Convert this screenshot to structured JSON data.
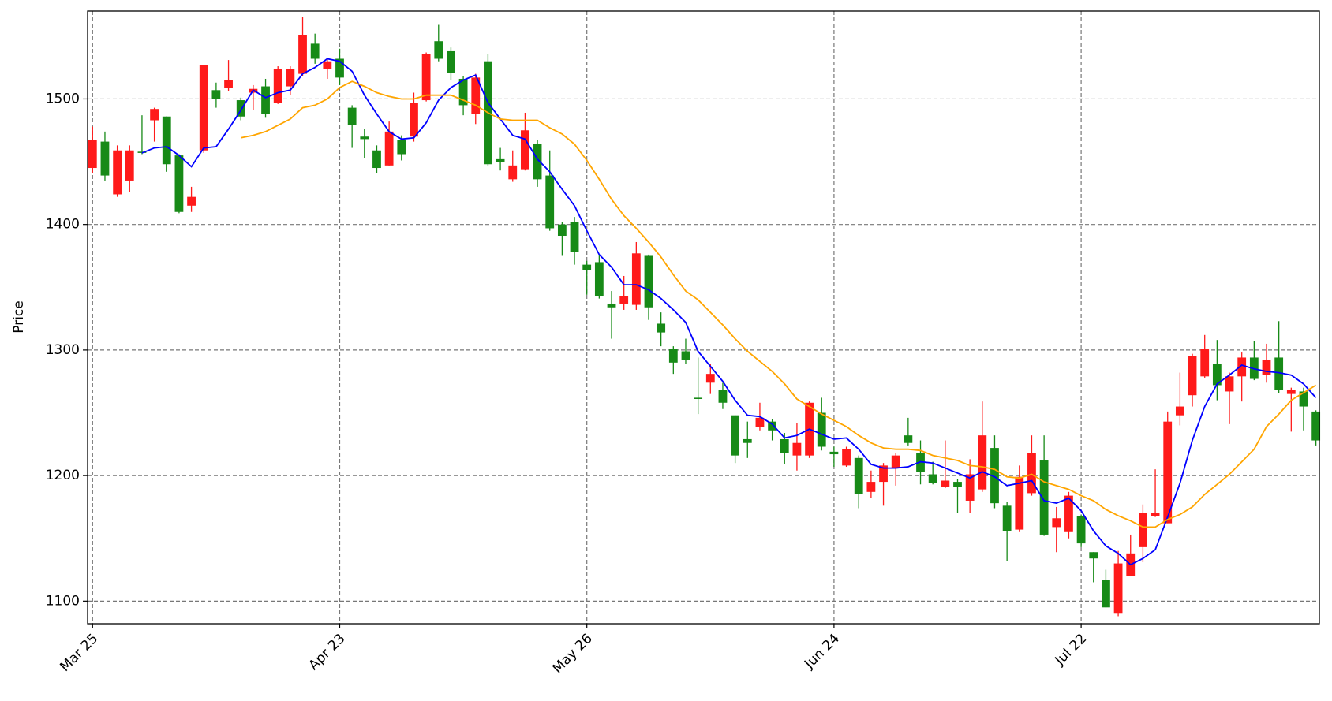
{
  "chart_data": {
    "type": "candlestick",
    "ylabel": "Price",
    "categories": [
      "Mar 25",
      null,
      null,
      null,
      null,
      null,
      null,
      null,
      null,
      null,
      null,
      null,
      null,
      null,
      null,
      null,
      null,
      null,
      null,
      null,
      "Apr 23",
      null,
      null,
      null,
      null,
      null,
      null,
      null,
      null,
      null,
      null,
      null,
      null,
      null,
      null,
      null,
      null,
      null,
      null,
      null,
      "May 26",
      null,
      null,
      null,
      null,
      null,
      null,
      null,
      null,
      null,
      null,
      null,
      null,
      null,
      null,
      null,
      null,
      null,
      null,
      null,
      "Jun 24",
      null,
      null,
      null,
      null,
      null,
      null,
      null,
      null,
      null,
      null,
      null,
      null,
      null,
      null,
      null,
      null,
      null,
      null,
      null,
      "Jul 22",
      null,
      null,
      null,
      null,
      null,
      null,
      null,
      null,
      null,
      null,
      null,
      null,
      null,
      null,
      null,
      null,
      null,
      null,
      null
    ],
    "open": [
      1445,
      1466,
      1424,
      1435,
      1458,
      1483,
      1486,
      1455,
      1415,
      1459,
      1507,
      1509,
      1499,
      1505,
      1510,
      1497,
      1510,
      1520,
      1544,
      1524,
      1532,
      1493,
      1470,
      1459,
      1447,
      1467,
      1470,
      1499,
      1546,
      1538,
      1516,
      1488,
      1530,
      1452,
      1436,
      1444,
      1464,
      1439,
      1400,
      1402,
      1368,
      1370,
      1337,
      1337,
      1336,
      1375,
      1321,
      1301,
      1299,
      1262,
      1274,
      1268,
      1248,
      1229,
      1239,
      1243,
      1229,
      1216,
      1216,
      1250,
      1219,
      1208,
      1214,
      1187,
      1195,
      1206,
      1232,
      1218,
      1201,
      1191,
      1195,
      1180,
      1189,
      1222,
      1176,
      1157,
      1186,
      1212,
      1159,
      1155,
      1168,
      1139,
      1117,
      1090,
      1120,
      1143,
      1168,
      1162,
      1248,
      1264,
      1279,
      1289,
      1267,
      1279,
      1294,
      1280,
      1294,
      1265,
      1267,
      1251
    ],
    "high": [
      1478,
      1474,
      1463,
      1463,
      1487,
      1493,
      1486,
      1456,
      1430,
      1527,
      1513,
      1531,
      1501,
      1511,
      1516,
      1526,
      1526,
      1565,
      1552,
      1532,
      1540,
      1495,
      1476,
      1463,
      1482,
      1471,
      1505,
      1537,
      1559,
      1541,
      1518,
      1520,
      1536,
      1461,
      1459,
      1489,
      1467,
      1459,
      1402,
      1406,
      1371,
      1376,
      1347,
      1359,
      1386,
      1376,
      1330,
      1303,
      1309,
      1294,
      1289,
      1274,
      1248,
      1243,
      1258,
      1245,
      1234,
      1242,
      1259,
      1262,
      1223,
      1223,
      1216,
      1204,
      1210,
      1218,
      1246,
      1228,
      1211,
      1228,
      1197,
      1213,
      1259,
      1232,
      1179,
      1208,
      1232,
      1232,
      1175,
      1187,
      1169,
      1139,
      1125,
      1140,
      1153,
      1177,
      1205,
      1251,
      1282,
      1297,
      1312,
      1308,
      1282,
      1298,
      1307,
      1305,
      1323,
      1270,
      1270,
      1252
    ],
    "low": [
      1441,
      1435,
      1422,
      1426,
      1456,
      1466,
      1442,
      1409,
      1410,
      1457,
      1493,
      1506,
      1483,
      1491,
      1485,
      1496,
      1503,
      1518,
      1528,
      1516,
      1511,
      1461,
      1453,
      1441,
      1447,
      1451,
      1466,
      1498,
      1530,
      1515,
      1487,
      1480,
      1447,
      1443,
      1434,
      1443,
      1430,
      1395,
      1375,
      1368,
      1344,
      1341,
      1309,
      1332,
      1332,
      1324,
      1303,
      1281,
      1289,
      1249,
      1265,
      1253,
      1210,
      1214,
      1236,
      1228,
      1209,
      1204,
      1214,
      1220,
      1207,
      1207,
      1174,
      1182,
      1176,
      1192,
      1224,
      1193,
      1193,
      1190,
      1170,
      1170,
      1187,
      1174,
      1132,
      1155,
      1184,
      1152,
      1139,
      1150,
      1143,
      1115,
      1095,
      1088,
      1120,
      1131,
      1167,
      1162,
      1240,
      1255,
      1278,
      1260,
      1241,
      1259,
      1276,
      1274,
      1266,
      1235,
      1236,
      1224
    ],
    "close": [
      1467,
      1439,
      1459,
      1459,
      1457,
      1492,
      1448,
      1410,
      1422,
      1527,
      1500,
      1515,
      1486,
      1508,
      1488,
      1524,
      1524,
      1551,
      1532,
      1530,
      1517,
      1479,
      1468,
      1445,
      1474,
      1456,
      1497,
      1536,
      1532,
      1521,
      1495,
      1517,
      1448,
      1450,
      1447,
      1475,
      1436,
      1397,
      1391,
      1378,
      1364,
      1343,
      1334,
      1343,
      1377,
      1334,
      1314,
      1290,
      1292,
      1261,
      1281,
      1258,
      1216,
      1226,
      1246,
      1236,
      1218,
      1226,
      1258,
      1223,
      1217,
      1221,
      1185,
      1195,
      1208,
      1216,
      1226,
      1203,
      1194,
      1196,
      1191,
      1201,
      1232,
      1178,
      1156,
      1199,
      1218,
      1153,
      1166,
      1184,
      1146,
      1134,
      1095,
      1130,
      1138,
      1170,
      1170,
      1243,
      1255,
      1295,
      1301,
      1272,
      1279,
      1294,
      1277,
      1292,
      1268,
      1268,
      1255,
      1228
    ],
    "up_color": "#ff1a1a",
    "down_color": "#178a17",
    "series": [
      {
        "color": "#0000ff",
        "values": [
          null,
          null,
          null,
          null,
          1457,
          1461,
          1462,
          1455,
          1446,
          1461,
          1462,
          1476,
          1491,
          1507,
          1501,
          1505,
          1507,
          1520,
          1525,
          1532,
          1530,
          1522,
          1503,
          1488,
          1474,
          1468,
          1469,
          1481,
          1499,
          1509,
          1515,
          1519,
          1497,
          1484,
          1471,
          1468,
          1452,
          1442,
          1428,
          1415,
          1395,
          1376,
          1366,
          1352,
          1352,
          1348,
          1341,
          1332,
          1322,
          1299,
          1287,
          1275,
          1260,
          1248,
          1247,
          1241,
          1230,
          1232,
          1237,
          1233,
          1229,
          1230,
          1221,
          1209,
          1206,
          1206,
          1207,
          1211,
          1210,
          1206,
          1202,
          1198,
          1203,
          1199,
          1192,
          1194,
          1196,
          1180,
          1178,
          1182,
          1172,
          1156,
          1144,
          1138,
          1129,
          1134,
          1141,
          1167,
          1194,
          1228,
          1255,
          1273,
          1280,
          1288,
          1285,
          1283,
          1282,
          1280,
          1273,
          1262
        ]
      },
      {
        "color": "#ffa500",
        "values": [
          null,
          null,
          null,
          null,
          null,
          null,
          null,
          null,
          null,
          null,
          null,
          null,
          1469,
          1471,
          1474,
          1479,
          1484,
          1493,
          1495,
          1500,
          1509,
          1514,
          1510,
          1505,
          1502,
          1500,
          1500,
          1503,
          1503,
          1503,
          1499,
          1495,
          1489,
          1484,
          1483,
          1483,
          1483,
          1477,
          1472,
          1464,
          1451,
          1436,
          1420,
          1407,
          1397,
          1386,
          1374,
          1360,
          1347,
          1340,
          1330,
          1320,
          1309,
          1299,
          1291,
          1283,
          1273,
          1261,
          1255,
          1249,
          1244,
          1239,
          1232,
          1226,
          1222,
          1221,
          1221,
          1220,
          1216,
          1214,
          1212,
          1208,
          1207,
          1205,
          1199,
          1198,
          1201,
          1195,
          1192,
          1189,
          1184,
          1180,
          1173,
          1168,
          1164,
          1159,
          1159,
          1165,
          1169,
          1175,
          1185,
          1193,
          1201,
          1211,
          1221,
          1239,
          1249,
          1260,
          1266,
          1272
        ]
      }
    ],
    "ylim": [
      1082,
      1570
    ],
    "yticks": [
      1100,
      1200,
      1300,
      1400,
      1500
    ],
    "grid": true
  }
}
